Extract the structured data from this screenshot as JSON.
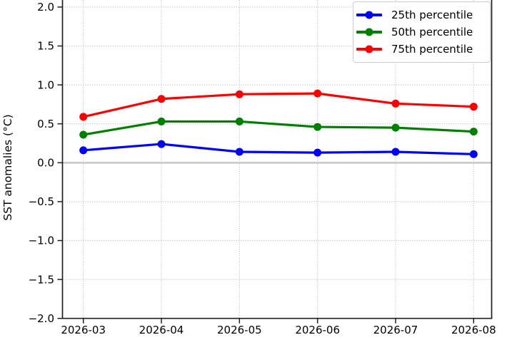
{
  "chart_data": {
    "type": "line",
    "title": "",
    "xlabel": "",
    "ylabel": "SST anomalies (°C)",
    "categories": [
      "2026-03",
      "2026-04",
      "2026-05",
      "2026-06",
      "2026-07",
      "2026-08"
    ],
    "series": [
      {
        "name": "25th percentile",
        "color": "#0000ff",
        "values": [
          0.16,
          0.24,
          0.14,
          0.13,
          0.14,
          0.11
        ]
      },
      {
        "name": "50th percentile",
        "color": "#008000",
        "values": [
          0.36,
          0.53,
          0.53,
          0.46,
          0.45,
          0.4
        ]
      },
      {
        "name": "75th percentile",
        "color": "#ff0000",
        "values": [
          0.59,
          0.82,
          0.88,
          0.89,
          0.76,
          0.72
        ]
      }
    ],
    "y_ticks": [
      2.0,
      1.5,
      1.0,
      0.5,
      0.0,
      -0.5,
      -1.0,
      -1.5,
      -2.0
    ],
    "ylim": [
      -2.0,
      2.1
    ],
    "grid": "dotted",
    "zero_line": true,
    "legend_position": "upper right"
  },
  "colors": {
    "background": "#ffffff",
    "grid": "#b5b5b5",
    "zero_line": "#c9c9c9",
    "spine": "#1f1f1f",
    "tick_text": "#000000"
  }
}
